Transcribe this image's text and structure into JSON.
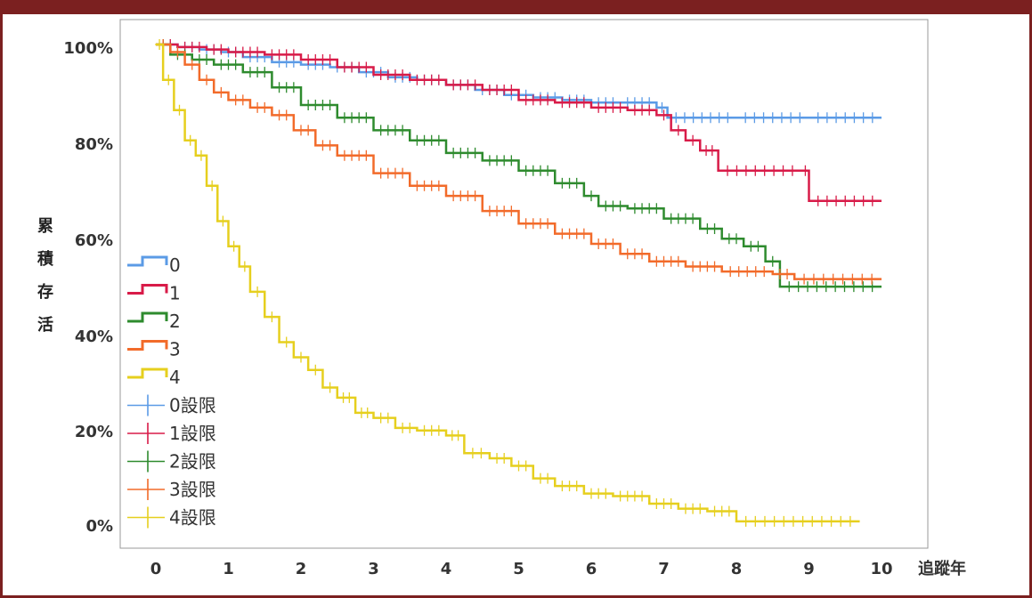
{
  "chart_data": {
    "type": "line",
    "title": "",
    "xlabel": "追蹤年",
    "ylabel": "累積存活",
    "ylabel_chars": [
      "累",
      "積",
      "存",
      "活"
    ],
    "x_ticks": [
      "0",
      "1",
      "2",
      "3",
      "4",
      "5",
      "6",
      "7",
      "8",
      "9",
      "10"
    ],
    "y_ticks": [
      "0%",
      "20%",
      "40%",
      "60%",
      "80%",
      "100%"
    ],
    "xlim": [
      0,
      10
    ],
    "ylim": [
      0,
      1
    ],
    "grid": false,
    "legend_position": "left",
    "series": [
      {
        "name": "0",
        "censor_label": "0設限",
        "color": "#5b9be6",
        "x": [
          0,
          0.3,
          0.6,
          0.9,
          1.2,
          1.6,
          2.0,
          2.4,
          2.8,
          3.2,
          3.6,
          4.0,
          4.4,
          4.8,
          5.2,
          5.6,
          6.0,
          6.4,
          6.9,
          7.05,
          8.0,
          9.0,
          10.0
        ],
        "y": [
          1.0,
          0.995,
          0.99,
          0.985,
          0.975,
          0.965,
          0.96,
          0.955,
          0.945,
          0.935,
          0.93,
          0.92,
          0.91,
          0.9,
          0.895,
          0.89,
          0.885,
          0.885,
          0.875,
          0.855,
          0.855,
          0.855,
          0.855
        ]
      },
      {
        "name": "1",
        "censor_label": "1設限",
        "color": "#d81b48",
        "x": [
          0,
          0.3,
          0.7,
          1.0,
          1.5,
          2.0,
          2.5,
          3.0,
          3.5,
          4.0,
          4.5,
          5.0,
          5.5,
          6.0,
          6.5,
          6.9,
          7.1,
          7.3,
          7.5,
          7.75,
          8.9,
          9.0,
          10.0
        ],
        "y": [
          1.0,
          0.995,
          0.99,
          0.985,
          0.98,
          0.97,
          0.955,
          0.94,
          0.93,
          0.92,
          0.91,
          0.89,
          0.885,
          0.875,
          0.87,
          0.86,
          0.83,
          0.81,
          0.79,
          0.75,
          0.75,
          0.69,
          0.69
        ]
      },
      {
        "name": "2",
        "censor_label": "2設限",
        "color": "#2e8b2e",
        "x": [
          0,
          0.2,
          0.5,
          0.8,
          1.2,
          1.6,
          2.0,
          2.5,
          3.0,
          3.5,
          4.0,
          4.5,
          5.0,
          5.5,
          5.9,
          6.1,
          6.5,
          7.0,
          7.5,
          7.8,
          8.1,
          8.4,
          8.6,
          10.0
        ],
        "y": [
          1.0,
          0.98,
          0.97,
          0.96,
          0.945,
          0.915,
          0.88,
          0.855,
          0.83,
          0.81,
          0.785,
          0.77,
          0.75,
          0.725,
          0.7,
          0.68,
          0.675,
          0.655,
          0.635,
          0.615,
          0.6,
          0.57,
          0.52,
          0.52
        ]
      },
      {
        "name": "3",
        "censor_label": "3設限",
        "color": "#f26b2a",
        "x": [
          0,
          0.2,
          0.4,
          0.6,
          0.8,
          1.0,
          1.3,
          1.6,
          1.9,
          2.2,
          2.5,
          3.0,
          3.5,
          4.0,
          4.5,
          5.0,
          5.5,
          6.0,
          6.4,
          6.8,
          7.3,
          7.8,
          8.5,
          8.8,
          10.0
        ],
        "y": [
          1.0,
          0.985,
          0.96,
          0.93,
          0.905,
          0.89,
          0.875,
          0.86,
          0.83,
          0.8,
          0.78,
          0.745,
          0.72,
          0.7,
          0.67,
          0.645,
          0.625,
          0.605,
          0.585,
          0.57,
          0.56,
          0.55,
          0.545,
          0.535,
          0.535
        ]
      },
      {
        "name": "4",
        "censor_label": "4設限",
        "color": "#e6cf1e",
        "x": [
          0,
          0.1,
          0.25,
          0.4,
          0.55,
          0.7,
          0.85,
          1.0,
          1.15,
          1.3,
          1.5,
          1.7,
          1.9,
          2.1,
          2.3,
          2.5,
          2.75,
          3.0,
          3.3,
          3.6,
          4.0,
          4.25,
          4.6,
          4.9,
          5.2,
          5.5,
          5.9,
          6.3,
          6.8,
          7.2,
          7.6,
          8.0,
          9.7
        ],
        "y": [
          1.0,
          0.93,
          0.87,
          0.81,
          0.78,
          0.72,
          0.65,
          0.6,
          0.56,
          0.51,
          0.46,
          0.41,
          0.38,
          0.355,
          0.32,
          0.3,
          0.27,
          0.26,
          0.24,
          0.235,
          0.225,
          0.19,
          0.18,
          0.165,
          0.14,
          0.125,
          0.11,
          0.105,
          0.09,
          0.08,
          0.075,
          0.055,
          0.055
        ]
      }
    ]
  }
}
